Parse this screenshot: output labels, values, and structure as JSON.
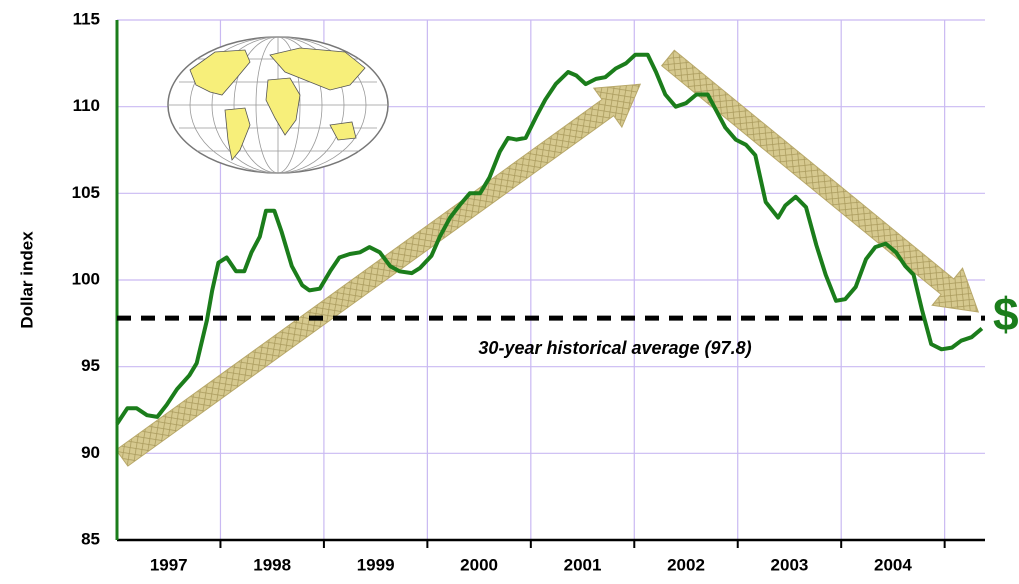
{
  "chart_data": {
    "type": "line",
    "y_label": "Dollar index",
    "annotation": "30-year historical average (97.8)",
    "symbol": "$",
    "average": 97.8,
    "ylim": [
      85,
      115
    ],
    "yticks": [
      85,
      90,
      95,
      100,
      105,
      110,
      115
    ],
    "xlim": [
      1997,
      2005.39
    ],
    "xticks": [
      {
        "value": 1997.5,
        "label": "1997"
      },
      {
        "value": 1998.5,
        "label": "1998"
      },
      {
        "value": 1999.5,
        "label": "1999"
      },
      {
        "value": 2000.5,
        "label": "2000"
      },
      {
        "value": 2001.5,
        "label": "2001"
      },
      {
        "value": 2002.5,
        "label": "2002"
      },
      {
        "value": 2003.5,
        "label": "2003"
      },
      {
        "value": 2004.5,
        "label": "2004"
      }
    ],
    "xgrid": [
      1998,
      1999,
      2000,
      2001,
      2002,
      2003,
      2004,
      2005
    ],
    "grid": true,
    "color": "#1b7d1b",
    "x": [
      1997.0,
      1997.1,
      1997.19,
      1997.29,
      1997.39,
      1997.48,
      1997.58,
      1997.7,
      1997.77,
      1997.87,
      1997.92,
      1997.98,
      1998.06,
      1998.15,
      1998.23,
      1998.3,
      1998.38,
      1998.44,
      1998.52,
      1998.59,
      1998.69,
      1998.79,
      1998.86,
      1998.96,
      1999.06,
      1999.15,
      1999.25,
      1999.35,
      1999.44,
      1999.54,
      1999.64,
      1999.73,
      1999.85,
      1999.93,
      2000.04,
      2000.12,
      2000.22,
      2000.31,
      2000.41,
      2000.51,
      2000.6,
      2000.7,
      2000.78,
      2000.86,
      2000.95,
      2001.05,
      2001.14,
      2001.24,
      2001.36,
      2001.44,
      2001.53,
      2001.63,
      2001.72,
      2001.82,
      2001.92,
      2002.01,
      2002.13,
      2002.21,
      2002.3,
      2002.4,
      2002.5,
      2002.6,
      2002.71,
      2002.79,
      2002.88,
      2002.98,
      2003.08,
      2003.17,
      2003.27,
      2003.39,
      2003.46,
      2003.56,
      2003.66,
      2003.76,
      2003.85,
      2003.95,
      2004.04,
      2004.14,
      2004.24,
      2004.33,
      2004.43,
      2004.53,
      2004.62,
      2004.7,
      2004.78,
      2004.87,
      2004.97,
      2005.07,
      2005.16,
      2005.26,
      2005.36
    ],
    "values": [
      91.7,
      92.6,
      92.6,
      92.2,
      92.1,
      92.8,
      93.7,
      94.5,
      95.2,
      97.7,
      99.4,
      101.0,
      101.3,
      100.5,
      100.5,
      101.6,
      102.5,
      104.0,
      104.0,
      102.8,
      100.8,
      99.7,
      99.4,
      99.5,
      100.5,
      101.3,
      101.5,
      101.6,
      101.9,
      101.6,
      100.8,
      100.5,
      100.4,
      100.7,
      101.4,
      102.5,
      103.6,
      104.3,
      105.0,
      105.0,
      105.9,
      107.4,
      108.2,
      108.1,
      108.2,
      109.4,
      110.4,
      111.3,
      112.0,
      111.8,
      111.3,
      111.6,
      111.7,
      112.2,
      112.5,
      113.0,
      113.0,
      112.0,
      110.7,
      110.0,
      110.2,
      110.7,
      110.7,
      109.8,
      108.8,
      108.1,
      107.8,
      107.2,
      104.5,
      103.6,
      104.3,
      104.8,
      104.2,
      102.0,
      100.3,
      98.8,
      98.9,
      99.6,
      101.2,
      101.9,
      102.1,
      101.6,
      100.8,
      100.3,
      98.3,
      96.3,
      96.0,
      96.1,
      96.5,
      96.7,
      97.2
    ]
  }
}
